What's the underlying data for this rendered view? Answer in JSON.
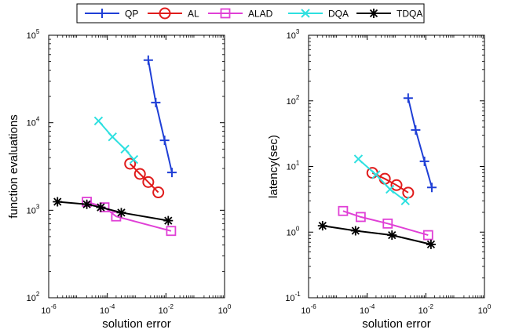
{
  "legend": {
    "entries": [
      {
        "label": "QP",
        "color": "#1f3fd6",
        "marker": "plus"
      },
      {
        "label": "AL",
        "color": "#e01b1b",
        "marker": "circle"
      },
      {
        "label": "ALAD",
        "color": "#e040d6",
        "marker": "square"
      },
      {
        "label": "DQA",
        "color": "#2ee0e0",
        "marker": "x"
      },
      {
        "label": "TDQA",
        "color": "#000000",
        "marker": "star"
      }
    ]
  },
  "chart_data": [
    {
      "type": "line",
      "xscale": "log",
      "yscale": "log",
      "xlabel": "solution error",
      "ylabel": "function evaluations",
      "xlim": [
        1e-06,
        1
      ],
      "ylim": [
        100,
        100000
      ],
      "xticks": [
        {
          "base": "10",
          "exp": "-6"
        },
        {
          "base": "10",
          "exp": "-4"
        },
        {
          "base": "10",
          "exp": "-2"
        },
        {
          "base": "10",
          "exp": "0"
        }
      ],
      "yticks": [
        {
          "base": "10",
          "exp": "2"
        },
        {
          "base": "10",
          "exp": "3"
        },
        {
          "base": "10",
          "exp": "4"
        },
        {
          "base": "10",
          "exp": "5"
        }
      ],
      "series": [
        {
          "name": "QP",
          "x": [
            0.0025,
            0.0045,
            0.009,
            0.016
          ],
          "y": [
            52000,
            17000,
            6300,
            2700
          ]
        },
        {
          "name": "AL",
          "x": [
            0.0006,
            0.0013,
            0.0025,
            0.0055
          ],
          "y": [
            3400,
            2600,
            2100,
            1600
          ]
        },
        {
          "name": "ALAD",
          "x": [
            2e-05,
            8e-05,
            0.0002,
            0.015
          ],
          "y": [
            1250,
            1080,
            850,
            580
          ]
        },
        {
          "name": "DQA",
          "x": [
            5e-05,
            0.00015,
            0.0004,
            0.0008
          ],
          "y": [
            10500,
            6900,
            5000,
            3800
          ]
        },
        {
          "name": "TDQA",
          "x": [
            2e-06,
            2e-05,
            6e-05,
            0.0003,
            0.012
          ],
          "y": [
            1250,
            1170,
            1080,
            940,
            760
          ]
        }
      ]
    },
    {
      "type": "line",
      "xscale": "log",
      "yscale": "log",
      "xlabel": "solution error",
      "ylabel": "latency(sec)",
      "xlim": [
        1e-06,
        1
      ],
      "ylim": [
        0.1,
        1000
      ],
      "xticks": [
        {
          "base": "10",
          "exp": "-6"
        },
        {
          "base": "10",
          "exp": "-4"
        },
        {
          "base": "10",
          "exp": "-2"
        },
        {
          "base": "10",
          "exp": "0"
        }
      ],
      "yticks": [
        {
          "base": "10",
          "exp": "-1"
        },
        {
          "base": "10",
          "exp": "0"
        },
        {
          "base": "10",
          "exp": "1"
        },
        {
          "base": "10",
          "exp": "2"
        },
        {
          "base": "10",
          "exp": "3"
        }
      ],
      "series": [
        {
          "name": "QP",
          "x": [
            0.0025,
            0.0045,
            0.009,
            0.016
          ],
          "y": [
            110,
            36,
            12,
            4.8
          ]
        },
        {
          "name": "AL",
          "x": [
            0.00015,
            0.0004,
            0.001,
            0.0025
          ],
          "y": [
            8,
            6.5,
            5.2,
            4
          ]
        },
        {
          "name": "ALAD",
          "x": [
            1.5e-05,
            6e-05,
            0.0005,
            0.012
          ],
          "y": [
            2.1,
            1.7,
            1.35,
            0.9
          ]
        },
        {
          "name": "DQA",
          "x": [
            5e-05,
            0.0002,
            0.0006,
            0.002
          ],
          "y": [
            13,
            7.5,
            4.5,
            3
          ]
        },
        {
          "name": "TDQA",
          "x": [
            3e-06,
            4e-05,
            0.0007,
            0.015
          ],
          "y": [
            1.25,
            1.05,
            0.9,
            0.65
          ]
        }
      ]
    }
  ]
}
